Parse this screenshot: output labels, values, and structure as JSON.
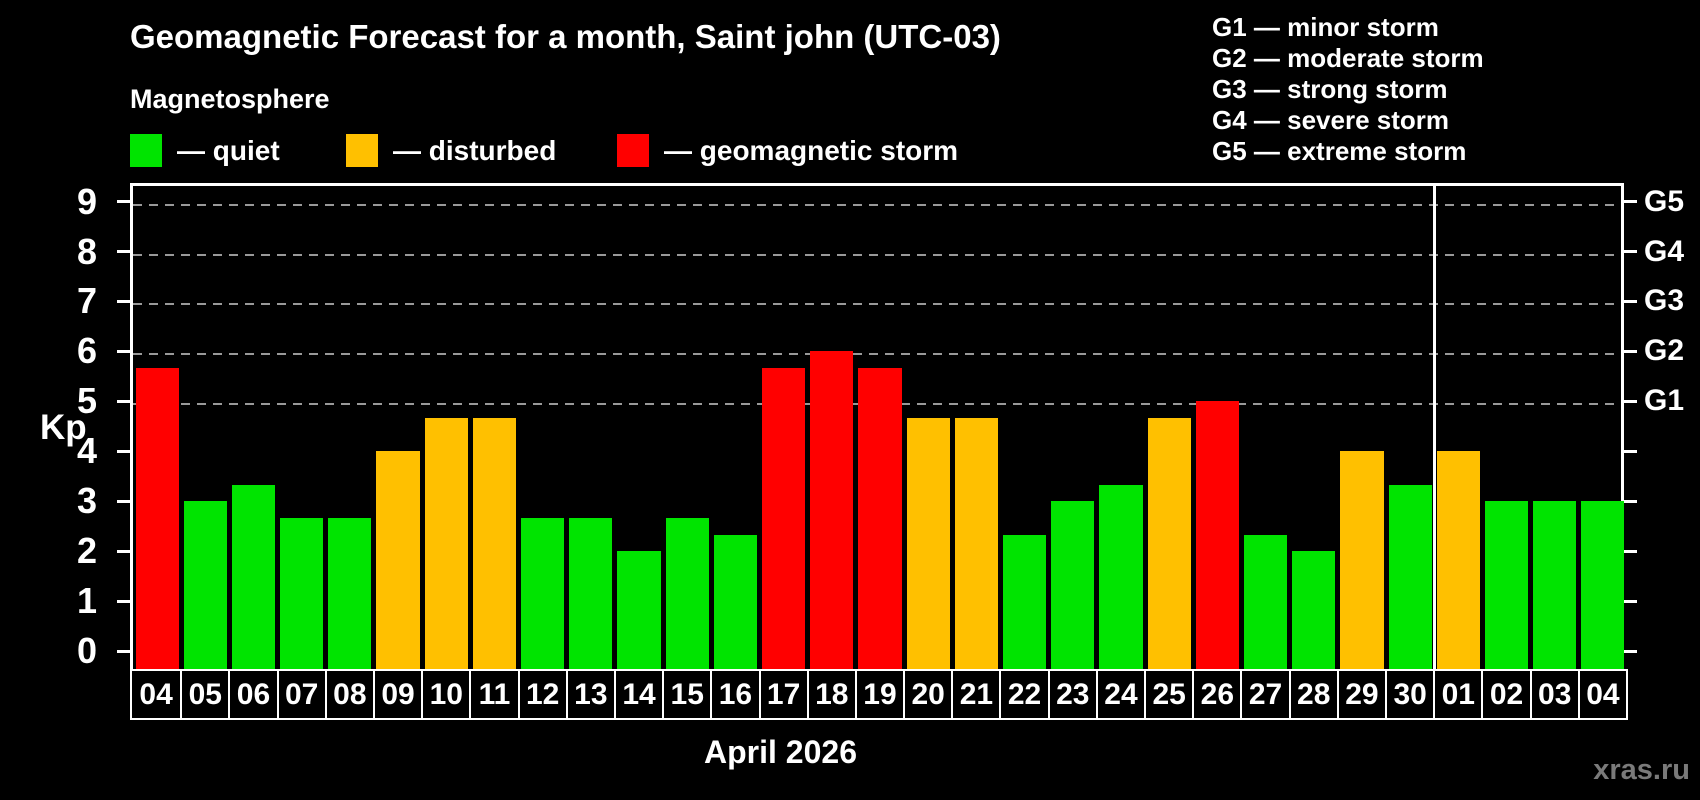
{
  "title": "Geomagnetic Forecast for a month, Saint john (UTC-03)",
  "subtitle": "Magnetosphere",
  "legend": [
    {
      "label": "— quiet",
      "status": "quiet"
    },
    {
      "label": "— disturbed",
      "status": "disturbed"
    },
    {
      "label": "— geomagnetic storm",
      "status": "storm"
    }
  ],
  "g_scale_legend": [
    "G1 — minor storm",
    "G2 — moderate storm",
    "G3 — strong storm",
    "G4 — severe storm",
    "G5 — extreme storm"
  ],
  "colors": {
    "quiet": "#00e400",
    "disturbed": "#ffc000",
    "storm": "#ff0000",
    "grid": "#999999",
    "axis": "#ffffff",
    "background": "#000000",
    "watermark": "#7a7a7a"
  },
  "y_axis": {
    "label": "Kp",
    "ticks": [
      0,
      1,
      2,
      3,
      4,
      5,
      6,
      7,
      8,
      9
    ]
  },
  "right_axis": {
    "ticks": [
      0,
      1,
      2,
      3,
      4,
      5,
      6,
      7,
      8,
      9
    ],
    "labels": [
      {
        "text": "G1",
        "kp": 5
      },
      {
        "text": "G2",
        "kp": 6
      },
      {
        "text": "G3",
        "kp": 7
      },
      {
        "text": "G4",
        "kp": 8
      },
      {
        "text": "G5",
        "kp": 9
      }
    ]
  },
  "x_axis": {
    "label": "April 2026"
  },
  "watermark": "xras.ru",
  "chart_data": {
    "type": "bar",
    "title": "Geomagnetic Forecast for a month, Saint john (UTC-03)",
    "ylabel": "Kp",
    "xlabel": "April 2026",
    "ylim": [
      -0.4,
      9.4
    ],
    "grid": "dashed horizontal at Kp 5-9 (G1-G5 storm levels)",
    "gridlines_kp": [
      5,
      6,
      7,
      8,
      9
    ],
    "legend_position": "top-left",
    "month_separator_after_index": 26,
    "categories": [
      "04",
      "05",
      "06",
      "07",
      "08",
      "09",
      "10",
      "11",
      "12",
      "13",
      "14",
      "15",
      "16",
      "17",
      "18",
      "19",
      "20",
      "21",
      "22",
      "23",
      "24",
      "25",
      "26",
      "27",
      "28",
      "29",
      "30",
      "01",
      "02",
      "03",
      "04"
    ],
    "values": [
      5.67,
      3.0,
      3.33,
      2.67,
      2.67,
      4.0,
      4.67,
      4.67,
      2.67,
      2.67,
      2.0,
      2.67,
      2.33,
      5.67,
      6.0,
      5.67,
      4.67,
      4.67,
      2.33,
      3.0,
      3.33,
      4.67,
      5.0,
      2.33,
      2.0,
      4.0,
      3.33,
      4.0,
      3.0,
      3.0,
      3.0
    ],
    "statuses": [
      "storm",
      "quiet",
      "quiet",
      "quiet",
      "quiet",
      "disturbed",
      "disturbed",
      "disturbed",
      "quiet",
      "quiet",
      "quiet",
      "quiet",
      "quiet",
      "storm",
      "storm",
      "storm",
      "disturbed",
      "disturbed",
      "quiet",
      "quiet",
      "quiet",
      "disturbed",
      "storm",
      "quiet",
      "quiet",
      "disturbed",
      "quiet",
      "disturbed",
      "quiet",
      "quiet",
      "quiet"
    ]
  }
}
